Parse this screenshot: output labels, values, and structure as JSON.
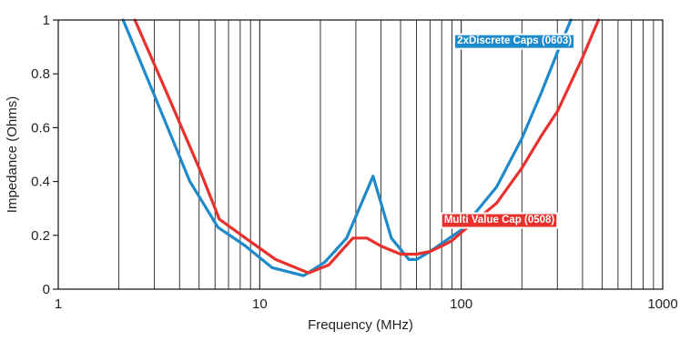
{
  "chart_data": {
    "type": "line",
    "xlabel": "Frequency  (MHz)",
    "ylabel": "Impedance  (Ohms)",
    "xscale": "log",
    "xlim": [
      1,
      1000
    ],
    "ylim": [
      0,
      1
    ],
    "x_ticks": [
      1,
      10,
      100,
      1000
    ],
    "x_tick_labels": [
      "1",
      "10",
      "100",
      "1000"
    ],
    "y_ticks": [
      0,
      0.2,
      0.4,
      0.6,
      0.8,
      1
    ],
    "y_tick_labels": [
      "0",
      "0.2",
      "0.4",
      "0.6",
      "0.8",
      "1"
    ],
    "grid": "vertical log decade lines",
    "series": [
      {
        "name": "2xDiscrete Caps (0603)",
        "color": "#1f8ac9",
        "label_bg": "#1f8ac9",
        "x": [
          2.1,
          3.0,
          4.5,
          6.2,
          8.5,
          11.5,
          16.5,
          21,
          27,
          36.5,
          45,
          55,
          60,
          70,
          80,
          100,
          150,
          200,
          250,
          300,
          350
        ],
        "y": [
          1.0,
          0.72,
          0.4,
          0.23,
          0.16,
          0.08,
          0.05,
          0.1,
          0.19,
          0.42,
          0.19,
          0.11,
          0.11,
          0.14,
          0.17,
          0.22,
          0.38,
          0.56,
          0.73,
          0.88,
          1.0
        ]
      },
      {
        "name": "Multi Value Cap (0508)",
        "color": "#e8302d",
        "label_bg": "#e8302d",
        "x": [
          2.4,
          3.5,
          5.0,
          6.3,
          8.5,
          12,
          17.5,
          22,
          29,
          34,
          40,
          50,
          60,
          70,
          80,
          90,
          100,
          150,
          200,
          250,
          300,
          400,
          480
        ],
        "y": [
          1.0,
          0.72,
          0.45,
          0.26,
          0.19,
          0.11,
          0.06,
          0.09,
          0.19,
          0.19,
          0.16,
          0.13,
          0.13,
          0.14,
          0.16,
          0.18,
          0.21,
          0.32,
          0.45,
          0.57,
          0.66,
          0.86,
          1.0
        ]
      }
    ],
    "annotations": [
      {
        "text": "2xDiscrete Caps (0603)",
        "series": 0,
        "anchor_x": 365,
        "anchor_y": 0.92
      },
      {
        "text": "Multi Value Cap (0508)",
        "series": 1,
        "anchor_x": 300,
        "anchor_y": 0.255
      }
    ]
  }
}
